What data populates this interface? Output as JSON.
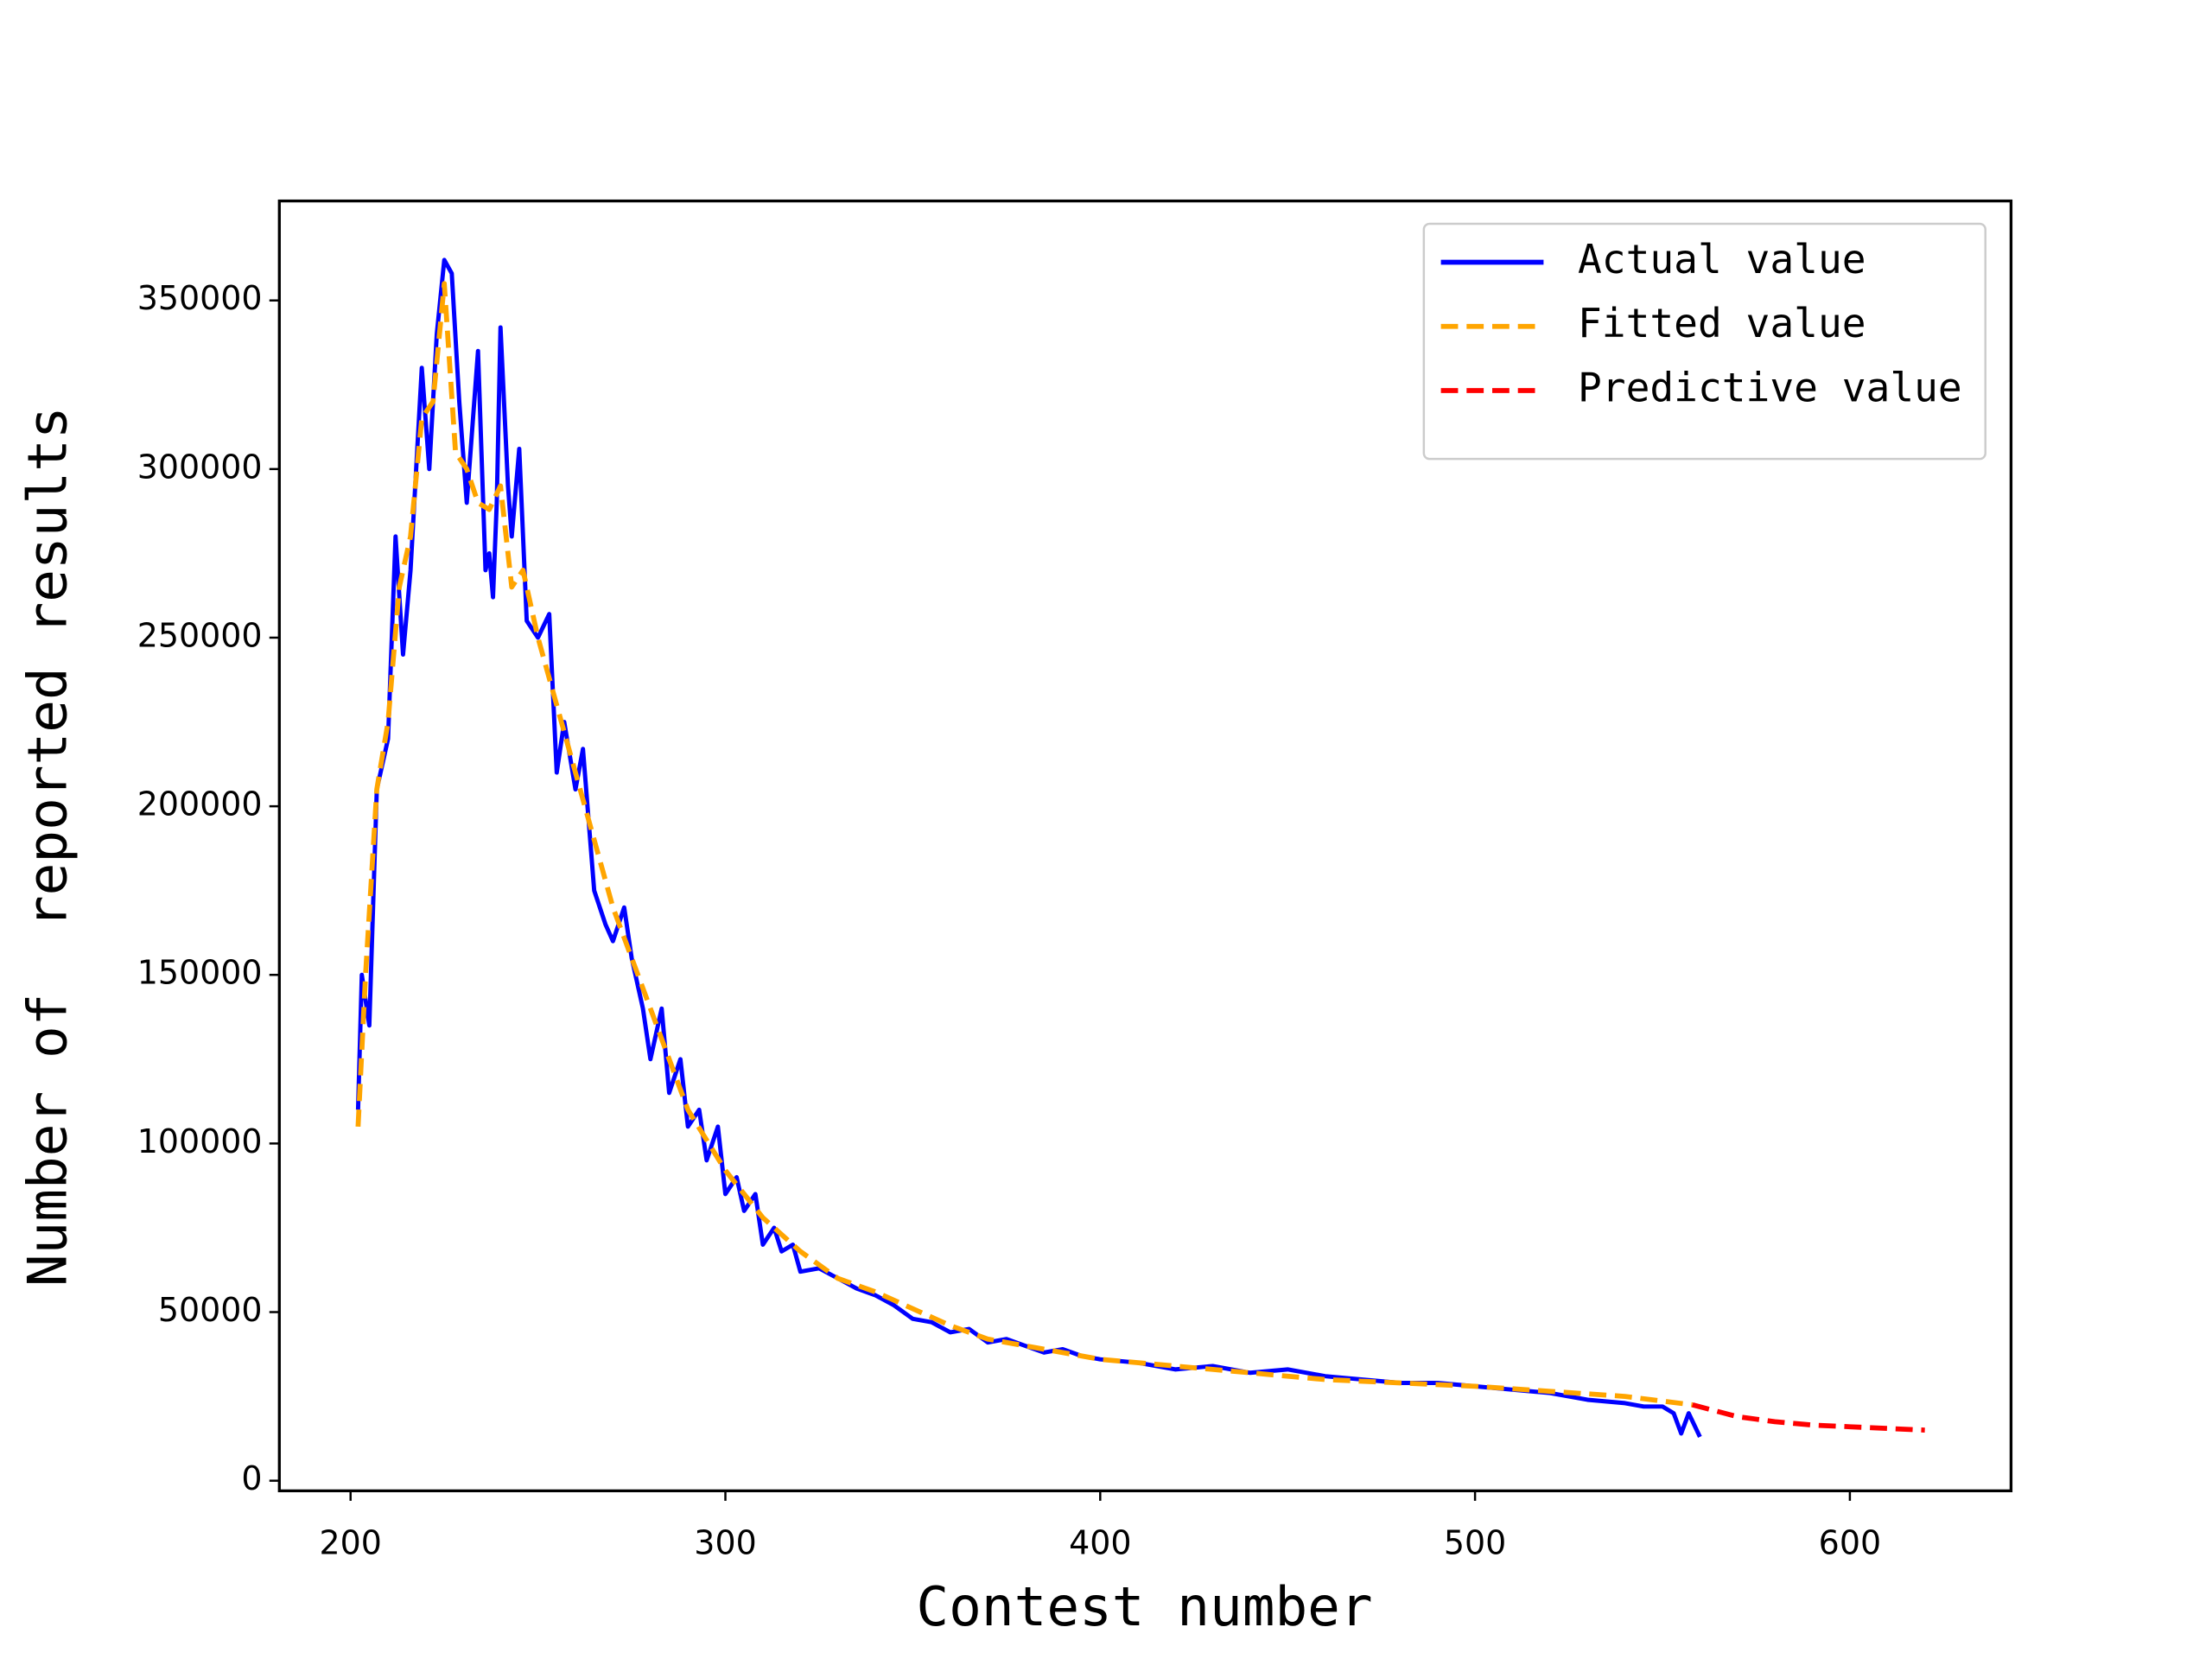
{
  "chart_data": {
    "type": "line",
    "xlabel": "Contest number",
    "ylabel": "Number of  reported results",
    "xlim": [
      181,
      643
    ],
    "ylim": [
      -3000,
      379500
    ],
    "xticks": [
      200,
      300,
      400,
      500,
      600
    ],
    "yticks": [
      0,
      50000,
      100000,
      150000,
      200000,
      250000,
      300000,
      350000
    ],
    "grid": false,
    "legend": "upper right",
    "series": [
      {
        "name": "Actual value",
        "color": "#0000ff",
        "dashed": false,
        "x": [
          202,
          203,
          205,
          207,
          210,
          212,
          214,
          216,
          219,
          221,
          223,
          225,
          227,
          229,
          231,
          234,
          236,
          237,
          238,
          239,
          240,
          242,
          243,
          245,
          247,
          250,
          253,
          255,
          257,
          260,
          262,
          265,
          268,
          270,
          273,
          275,
          278,
          280,
          283,
          285,
          288,
          290,
          293,
          295,
          298,
          300,
          303,
          305,
          308,
          310,
          313,
          315,
          318,
          320,
          325,
          330,
          335,
          340,
          345,
          350,
          355,
          360,
          365,
          370,
          375,
          380,
          385,
          390,
          395,
          400,
          410,
          420,
          430,
          440,
          450,
          460,
          470,
          480,
          490,
          500,
          510,
          520,
          530,
          540,
          545,
          550,
          553,
          555,
          557,
          560
        ],
        "values": [
          110000,
          150000,
          135000,
          205000,
          220000,
          280000,
          245000,
          270000,
          330000,
          300000,
          340000,
          362000,
          358000,
          320000,
          290000,
          335000,
          270000,
          275000,
          262000,
          290000,
          342000,
          295000,
          280000,
          306000,
          255000,
          250000,
          257000,
          210000,
          225000,
          205000,
          217000,
          175000,
          165000,
          160000,
          170000,
          155000,
          140000,
          125000,
          140000,
          115000,
          125000,
          105000,
          110000,
          95000,
          105000,
          85000,
          90000,
          80000,
          85000,
          70000,
          75000,
          68000,
          70000,
          62000,
          63000,
          60000,
          57000,
          55000,
          52000,
          48000,
          47000,
          44000,
          45000,
          41000,
          42000,
          40000,
          38000,
          39000,
          37000,
          36000,
          35000,
          33000,
          34000,
          32000,
          33000,
          31000,
          30000,
          29000,
          29000,
          28000,
          27000,
          26000,
          24000,
          23000,
          22000,
          22000,
          20000,
          14000,
          20000,
          13000
        ]
      },
      {
        "name": "Fitted value",
        "color": "#ffa500",
        "dashed": true,
        "x": [
          202,
          204,
          207,
          210,
          213,
          216,
          219,
          222,
          225,
          228,
          231,
          234,
          237,
          240,
          243,
          246,
          250,
          255,
          260,
          265,
          270,
          275,
          280,
          285,
          290,
          300,
          310,
          320,
          330,
          340,
          350,
          360,
          370,
          380,
          400,
          420,
          440,
          460,
          480,
          500,
          520,
          540,
          558
        ],
        "values": [
          105000,
          150000,
          205000,
          225000,
          265000,
          280000,
          315000,
          320000,
          355000,
          305000,
          300000,
          290000,
          288000,
          295000,
          265000,
          270000,
          250000,
          230000,
          210000,
          190000,
          170000,
          155000,
          140000,
          125000,
          110000,
          92000,
          78000,
          68000,
          60000,
          56000,
          51000,
          46000,
          42000,
          40000,
          36000,
          34000,
          32000,
          30000,
          29000,
          28000,
          26500,
          25000,
          22500
        ]
      },
      {
        "name": "Predictive value",
        "color": "#ff0000",
        "dashed": true,
        "x": [
          558,
          570,
          580,
          590,
          600,
          610,
          620
        ],
        "values": [
          22500,
          19000,
          17500,
          16500,
          16000,
          15500,
          15000
        ]
      }
    ]
  }
}
